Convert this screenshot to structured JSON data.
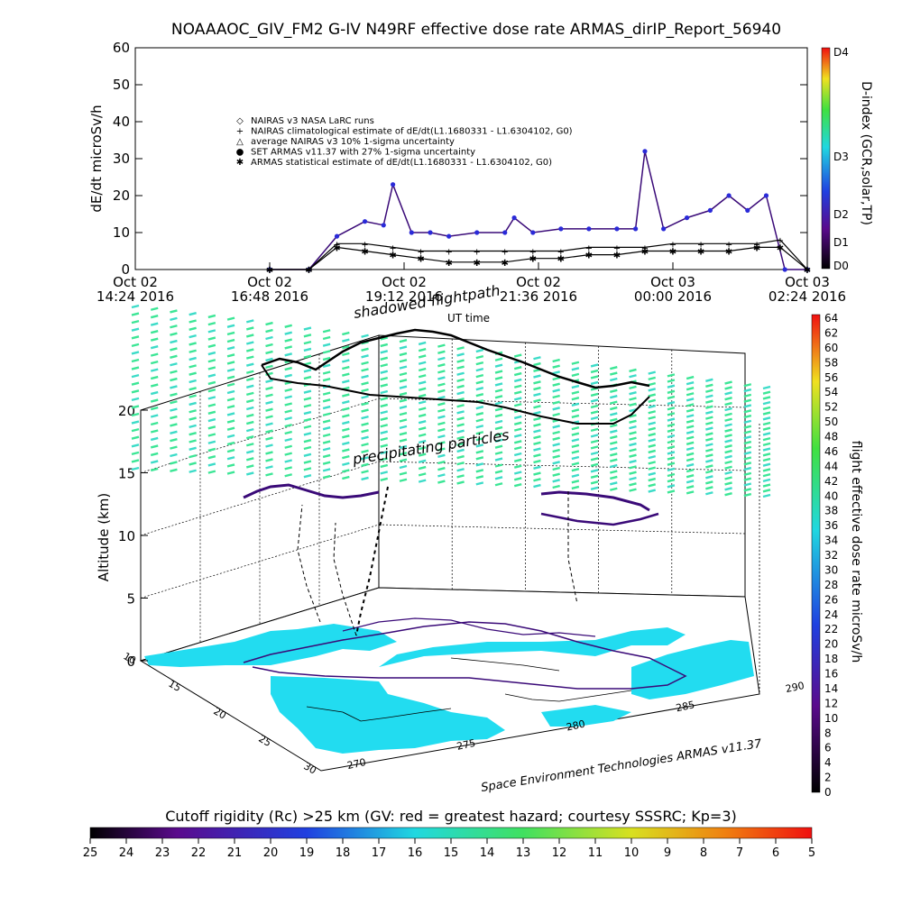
{
  "title": "NOAAAOC_GIV_FM2 G-IV    N49RF   effective dose rate ARMAS_dirIP_Report_56940",
  "top_plot": {
    "ylabel": "dE/dt microSv/h",
    "xlabel": "UT time",
    "y_ticks": [
      "0",
      "10",
      "20",
      "30",
      "40",
      "50",
      "60"
    ],
    "x_ticks": [
      {
        "line1": "Oct 02",
        "line2": "14:24 2016"
      },
      {
        "line1": "Oct 02",
        "line2": "16:48 2016"
      },
      {
        "line1": "Oct 02",
        "line2": "19:12 2016"
      },
      {
        "line1": "Oct 02",
        "line2": "21:36 2016"
      },
      {
        "line1": "Oct 03",
        "line2": "00:00 2016"
      },
      {
        "line1": "Oct 03",
        "line2": "02:24 2016"
      }
    ],
    "legend": [
      {
        "symbol": "◇",
        "label": "NAIRAS v3 NASA LaRC runs"
      },
      {
        "symbol": "+",
        "label": "NAIRAS climatological estimate of dE/dt(L1.1680331 - L1.6304102, G0)"
      },
      {
        "symbol": "△",
        "label": "average NAIRAS v3 10% 1-sigma uncertainty"
      },
      {
        "symbol": "●",
        "label": "SET ARMAS v11.37 with 27% 1-sigma uncertainty"
      },
      {
        "symbol": "✱",
        "label": "ARMAS statistical estimate of dE/dt(L1.1680331 - L1.6304102, G0)"
      }
    ],
    "dindex_label": "D-index (GCR,solar,TP)",
    "dindex_ticks": [
      "D0",
      "D1",
      "D2",
      "D3",
      "D4"
    ]
  },
  "chart_data": [
    {
      "type": "line",
      "title": "NOAAAOC_GIV_FM2 G-IV    N49RF   effective dose rate ARMAS_dirIP_Report_56940",
      "xlabel": "UT time",
      "ylabel": "dE/dt microSv/h",
      "ylim": [
        0,
        60
      ],
      "xlim": [
        "2016-10-02 14:24",
        "2016-10-03 02:24"
      ],
      "series": [
        {
          "name": "SET ARMAS v11.37 with 27% 1-sigma uncertainty",
          "x": [
            "2016-10-02 16:48",
            "2016-10-02 17:30",
            "2016-10-02 18:00",
            "2016-10-02 18:30",
            "2016-10-02 18:50",
            "2016-10-02 19:00",
            "2016-10-02 19:20",
            "2016-10-02 19:40",
            "2016-10-02 20:00",
            "2016-10-02 20:30",
            "2016-10-02 21:00",
            "2016-10-02 21:10",
            "2016-10-02 21:30",
            "2016-10-02 22:00",
            "2016-10-02 22:30",
            "2016-10-02 23:00",
            "2016-10-02 23:20",
            "2016-10-02 23:30",
            "2016-10-02 23:50",
            "2016-10-03 00:15",
            "2016-10-03 00:40",
            "2016-10-03 01:00",
            "2016-10-03 01:20",
            "2016-10-03 01:40",
            "2016-10-03 02:00",
            "2016-10-03 02:24"
          ],
          "y": [
            0,
            0,
            9,
            13,
            12,
            23,
            10,
            10,
            9,
            10,
            10,
            14,
            10,
            11,
            11,
            11,
            11,
            32,
            11,
            14,
            16,
            20,
            16,
            20,
            0,
            0
          ]
        },
        {
          "name": "ARMAS statistical estimate of dE/dt(L1.1680331 - L1.6304102, G0)",
          "x": [
            "2016-10-02 16:48",
            "2016-10-02 17:30",
            "2016-10-02 18:00",
            "2016-10-02 18:30",
            "2016-10-02 19:00",
            "2016-10-02 19:30",
            "2016-10-02 20:00",
            "2016-10-02 20:30",
            "2016-10-02 21:00",
            "2016-10-02 21:30",
            "2016-10-02 22:00",
            "2016-10-02 22:30",
            "2016-10-02 23:00",
            "2016-10-02 23:30",
            "2016-10-03 00:00",
            "2016-10-03 00:30",
            "2016-10-03 01:00",
            "2016-10-03 01:30",
            "2016-10-03 01:55",
            "2016-10-03 02:24"
          ],
          "y": [
            0,
            0,
            6,
            5,
            4,
            3,
            2,
            2,
            2,
            3,
            3,
            4,
            4,
            5,
            5,
            5,
            5,
            6,
            6,
            0
          ]
        },
        {
          "name": "NAIRAS climatological estimate of dE/dt(L1.1680331 - L1.6304102, G0)",
          "x": [
            "2016-10-02 16:48",
            "2016-10-02 17:30",
            "2016-10-02 18:00",
            "2016-10-02 18:30",
            "2016-10-02 19:00",
            "2016-10-02 19:30",
            "2016-10-02 20:00",
            "2016-10-02 20:30",
            "2016-10-02 21:00",
            "2016-10-02 21:30",
            "2016-10-02 22:00",
            "2016-10-02 22:30",
            "2016-10-02 23:00",
            "2016-10-02 23:30",
            "2016-10-03 00:00",
            "2016-10-03 00:30",
            "2016-10-03 01:00",
            "2016-10-03 01:30",
            "2016-10-03 01:55",
            "2016-10-03 02:24"
          ],
          "y": [
            0,
            0,
            7,
            7,
            6,
            5,
            5,
            5,
            5,
            5,
            5,
            6,
            6,
            6,
            7,
            7,
            7,
            7,
            8,
            0
          ]
        }
      ]
    }
  ],
  "lower_plot": {
    "zlabel": "Altitude (km)",
    "z_ticks": [
      "0",
      "5",
      "10",
      "15",
      "20"
    ],
    "lat_ticks": [
      "10",
      "15",
      "20",
      "25",
      "30"
    ],
    "lon_ticks": [
      "270",
      "275",
      "280",
      "285",
      "290"
    ],
    "label_shadow": "shadowed flightpath",
    "label_ut": "UT time",
    "label_precip": "precipitating particles",
    "credit": "Space Environment Technologies ARMAS v11.37",
    "dose_label": "flight effective dose rate microSv/h",
    "dose_ticks": [
      "0",
      "2",
      "4",
      "6",
      "8",
      "10",
      "12",
      "14",
      "16",
      "18",
      "20",
      "22",
      "24",
      "26",
      "28",
      "30",
      "32",
      "34",
      "36",
      "38",
      "40",
      "42",
      "44",
      "46",
      "48",
      "50",
      "52",
      "54",
      "56",
      "58",
      "60",
      "62",
      "64"
    ]
  },
  "cutoff": {
    "title": "Cutoff rigidity (Rc) >25 km (GV: red = greatest hazard; courtesy SSSRC; Kp=3)",
    "ticks": [
      "25",
      "24",
      "23",
      "22",
      "21",
      "20",
      "19",
      "18",
      "17",
      "16",
      "15",
      "14",
      "13",
      "12",
      "11",
      "10",
      "9",
      "8",
      "7",
      "6",
      "5"
    ]
  },
  "colors": {
    "armas": "#2a2ad8",
    "armas_dark": "#3a0a78",
    "nairas": "#000000",
    "sea": "#22dcf0",
    "grid_green": "#3ce696",
    "grid_cyan": "#3cdcc8"
  }
}
